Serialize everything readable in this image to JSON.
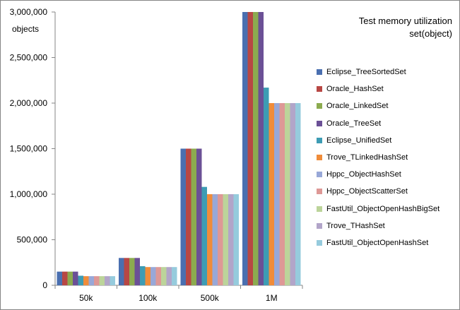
{
  "chart_data": {
    "type": "bar",
    "title_lines": [
      "Test  memory utilization",
      "set(object)"
    ],
    "ylabel": "objects",
    "xlabel": "",
    "ylim": [
      0,
      3000000
    ],
    "yticks": [
      0,
      500000,
      1000000,
      1500000,
      2000000,
      2500000,
      3000000
    ],
    "ytick_labels": [
      "0",
      "500,000",
      "1,000,000",
      "1,500,000",
      "2,000,000",
      "2,500,000",
      "3,000,000"
    ],
    "grid": false,
    "legend_position": "right",
    "categories": [
      "50k",
      "100k",
      "500k",
      "1M"
    ],
    "series": [
      {
        "name": "Eclipse_TreeSortedSet",
        "color": "#4a6fb0",
        "values": [
          150000,
          300000,
          1500000,
          3000000
        ]
      },
      {
        "name": "Oracle_HashSet",
        "color": "#b84744",
        "values": [
          150000,
          300000,
          1500000,
          3000000
        ]
      },
      {
        "name": "Oracle_LinkedSet",
        "color": "#8cab4f",
        "values": [
          150000,
          300000,
          1500000,
          3000000
        ]
      },
      {
        "name": "Oracle_TreeSet",
        "color": "#6b5096",
        "values": [
          150000,
          300000,
          1500000,
          3000000
        ]
      },
      {
        "name": "Eclipse_UnifiedSet",
        "color": "#3d9cb4",
        "values": [
          105000,
          210000,
          1080000,
          2170000
        ]
      },
      {
        "name": "Trove_TLinkedHashSet",
        "color": "#f08c3a",
        "values": [
          100000,
          200000,
          1000000,
          2000000
        ]
      },
      {
        "name": "Hppc_ObjectHashSet",
        "color": "#98a8d8",
        "values": [
          100000,
          200000,
          1000000,
          2000000
        ]
      },
      {
        "name": "Hppc_ObjectScatterSet",
        "color": "#de9896",
        "values": [
          100000,
          200000,
          1000000,
          2000000
        ]
      },
      {
        "name": "FastUtil_ObjectOpenHashBigSet",
        "color": "#bcd49a",
        "values": [
          100000,
          200000,
          1000000,
          2000000
        ]
      },
      {
        "name": "Trove_THashSet",
        "color": "#b2a5c9",
        "values": [
          100000,
          200000,
          1000000,
          2000000
        ]
      },
      {
        "name": "FastUtil_ObjectOpenHashSet",
        "color": "#96cbdd",
        "values": [
          100000,
          200000,
          1000000,
          2000000
        ]
      }
    ]
  }
}
